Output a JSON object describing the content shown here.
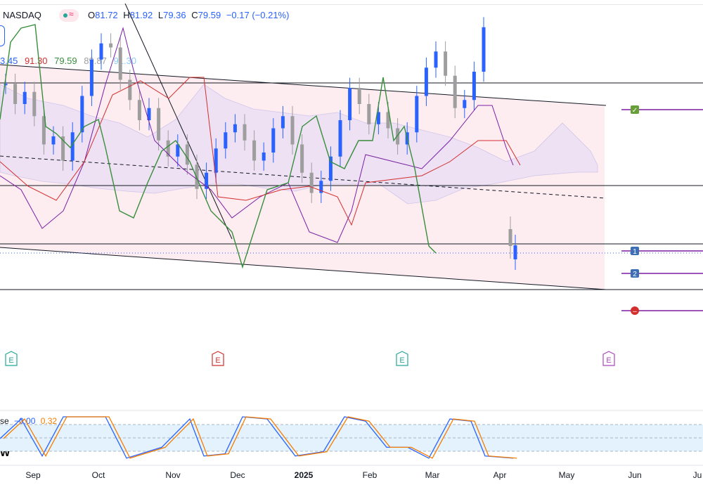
{
  "header": {
    "symbol": "NASDAQ",
    "ohlc": {
      "o_label": "O",
      "o_value": "81.72",
      "h_label": "H",
      "h_value": "81.92",
      "l_label": "L",
      "l_value": "79.36",
      "c_label": "C",
      "c_value": "79.59",
      "change": "−0.17 (−0.21%)"
    },
    "ichimoku_values": [
      "3.45",
      "91.30",
      "79.59",
      "89.87",
      "91.30"
    ],
    "badge_symbol": "≈"
  },
  "stoch": {
    "label_prefix": "se",
    "value1": "−0.00",
    "value2": "0.32",
    "w_label": "W"
  },
  "earnings_marker_text": "E",
  "order_markers": [
    "1",
    "2"
  ],
  "colors": {
    "up": "#2962ff",
    "down": "#9e9e9e",
    "tenkan": "#7b1fa2",
    "kijun": "#d32f2f",
    "chikou": "#388e3c",
    "channel_fill": "#fde7ec",
    "cloud_fill": "#e8def5",
    "stoch_k": "#2962ff",
    "stoch_d": "#f57c00",
    "stoch_band": "#e3f2fd"
  },
  "chart_data": {
    "type": "candlestick",
    "x_tick_labels": [
      "Sep",
      "Oct",
      "Nov",
      "Dec",
      "2025",
      "Feb",
      "Mar",
      "Apr",
      "May",
      "Jun",
      "Ju"
    ],
    "x_range": [
      "2024-08-20",
      "2025-06-28"
    ],
    "y_range": [
      76.0,
      84.0
    ],
    "series_close": [
      82.1,
      81.6,
      81.9,
      81.3,
      80.6,
      80.8,
      80.2,
      80.9,
      81.8,
      82.7,
      83.1,
      83.0,
      82.2,
      81.7,
      81.2,
      81.5,
      80.7,
      80.3,
      80.6,
      80.1,
      79.5,
      79.9,
      80.5,
      80.9,
      81.1,
      80.7,
      80.2,
      80.4,
      81.0,
      81.3,
      80.6,
      79.9,
      79.4,
      79.7,
      80.3,
      81.2,
      82.0,
      81.6,
      81.1,
      81.4,
      81.0,
      80.6,
      80.9,
      81.8,
      82.5,
      82.9,
      82.3,
      81.5,
      81.7,
      82.4,
      83.5,
      83.1,
      82.2,
      79.59
    ],
    "price_lines": [
      83.85,
      82.45,
      81.0,
      80.2
    ],
    "order_levels": [
      80.34,
      80.0
    ]
  }
}
